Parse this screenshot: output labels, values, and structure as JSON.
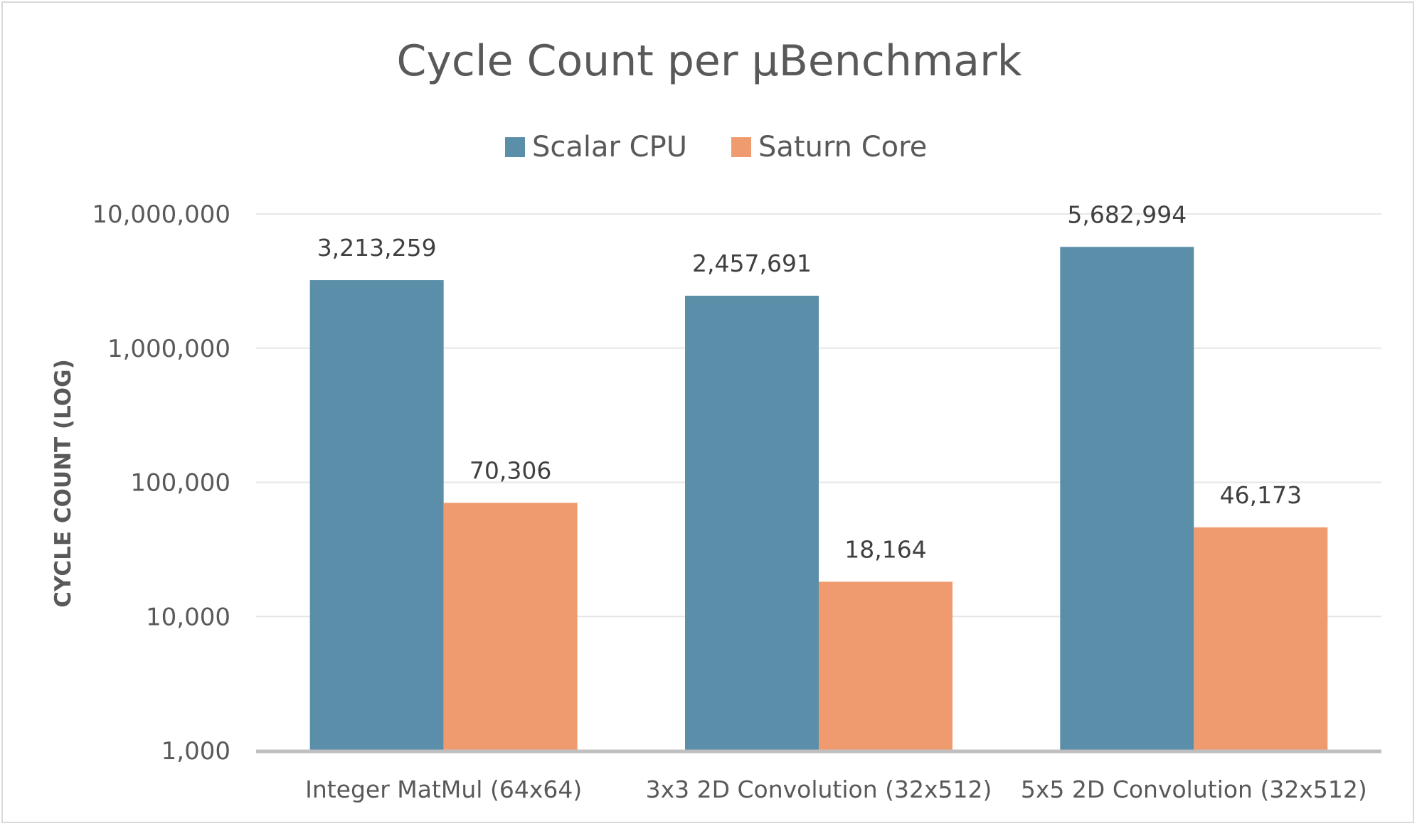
{
  "chart_data": {
    "type": "bar",
    "title": "Cycle Count per µBenchmark",
    "ylabel": "CYCLE COUNT (LOG)",
    "xlabel": "",
    "yscale": "log",
    "ylim": [
      1000,
      10000000
    ],
    "yticks": [
      1000,
      10000,
      100000,
      1000000,
      10000000
    ],
    "ytick_labels": [
      "1,000",
      "10,000",
      "100,000",
      "1,000,000",
      "10,000,000"
    ],
    "grid": true,
    "legend_position": "top",
    "categories": [
      "Integer MatMul (64x64)",
      "3x3 2D Convolution (32x512)",
      "5x5 2D Convolution (32x512)"
    ],
    "series": [
      {
        "name": "Scalar CPU",
        "color": "#5b8ea8",
        "values": [
          3213259,
          2457691,
          5682994
        ],
        "labels": [
          "3,213,259",
          "2,457,691",
          "5,682,994"
        ]
      },
      {
        "name": "Saturn Core",
        "color": "#f09b6f",
        "values": [
          70306,
          18164,
          46173
        ],
        "labels": [
          "70,306",
          "18,164",
          "46,173"
        ]
      }
    ]
  }
}
